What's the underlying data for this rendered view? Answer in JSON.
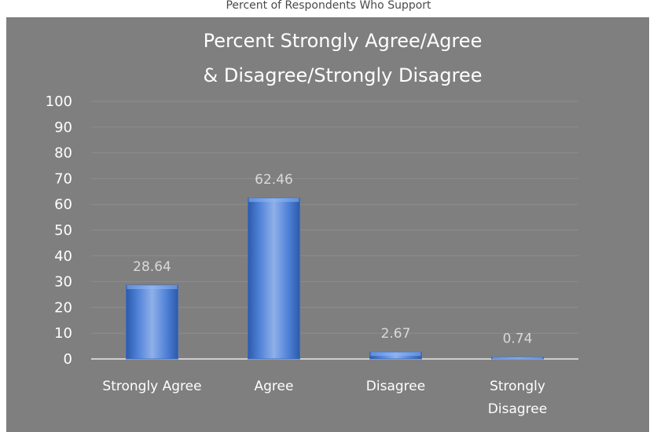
{
  "header": {
    "clipped_title": "Percent of Respondents Who Support"
  },
  "chart_data": {
    "type": "bar",
    "title_lines": [
      "Percent Strongly Agree/Agree",
      "& Disagree/Strongly Disagree"
    ],
    "categories": [
      [
        "Strongly Agree"
      ],
      [
        "Agree"
      ],
      [
        "Disagree"
      ],
      [
        "Strongly",
        "Disagree"
      ]
    ],
    "values": [
      28.64,
      62.46,
      2.67,
      0.74
    ],
    "value_labels": [
      "28.64",
      "62.46",
      "2.67",
      "0.74"
    ],
    "ylim": [
      0,
      100
    ],
    "yticks": [
      0,
      10,
      20,
      30,
      40,
      50,
      60,
      70,
      80,
      90,
      100
    ],
    "grid": true,
    "legend": "none",
    "colors": {
      "background": "#7f7f7f",
      "plot_border": "#ffffff",
      "bar_fill_light": "#8fb0e8",
      "bar_fill_mid": "#4f81d8",
      "bar_fill_dark": "#2b5aa9",
      "gridline": "#8d8d8d",
      "axis_line": "#cfcfcf",
      "tick_label": "#ffffff",
      "data_label": "#d9d9d9"
    }
  }
}
